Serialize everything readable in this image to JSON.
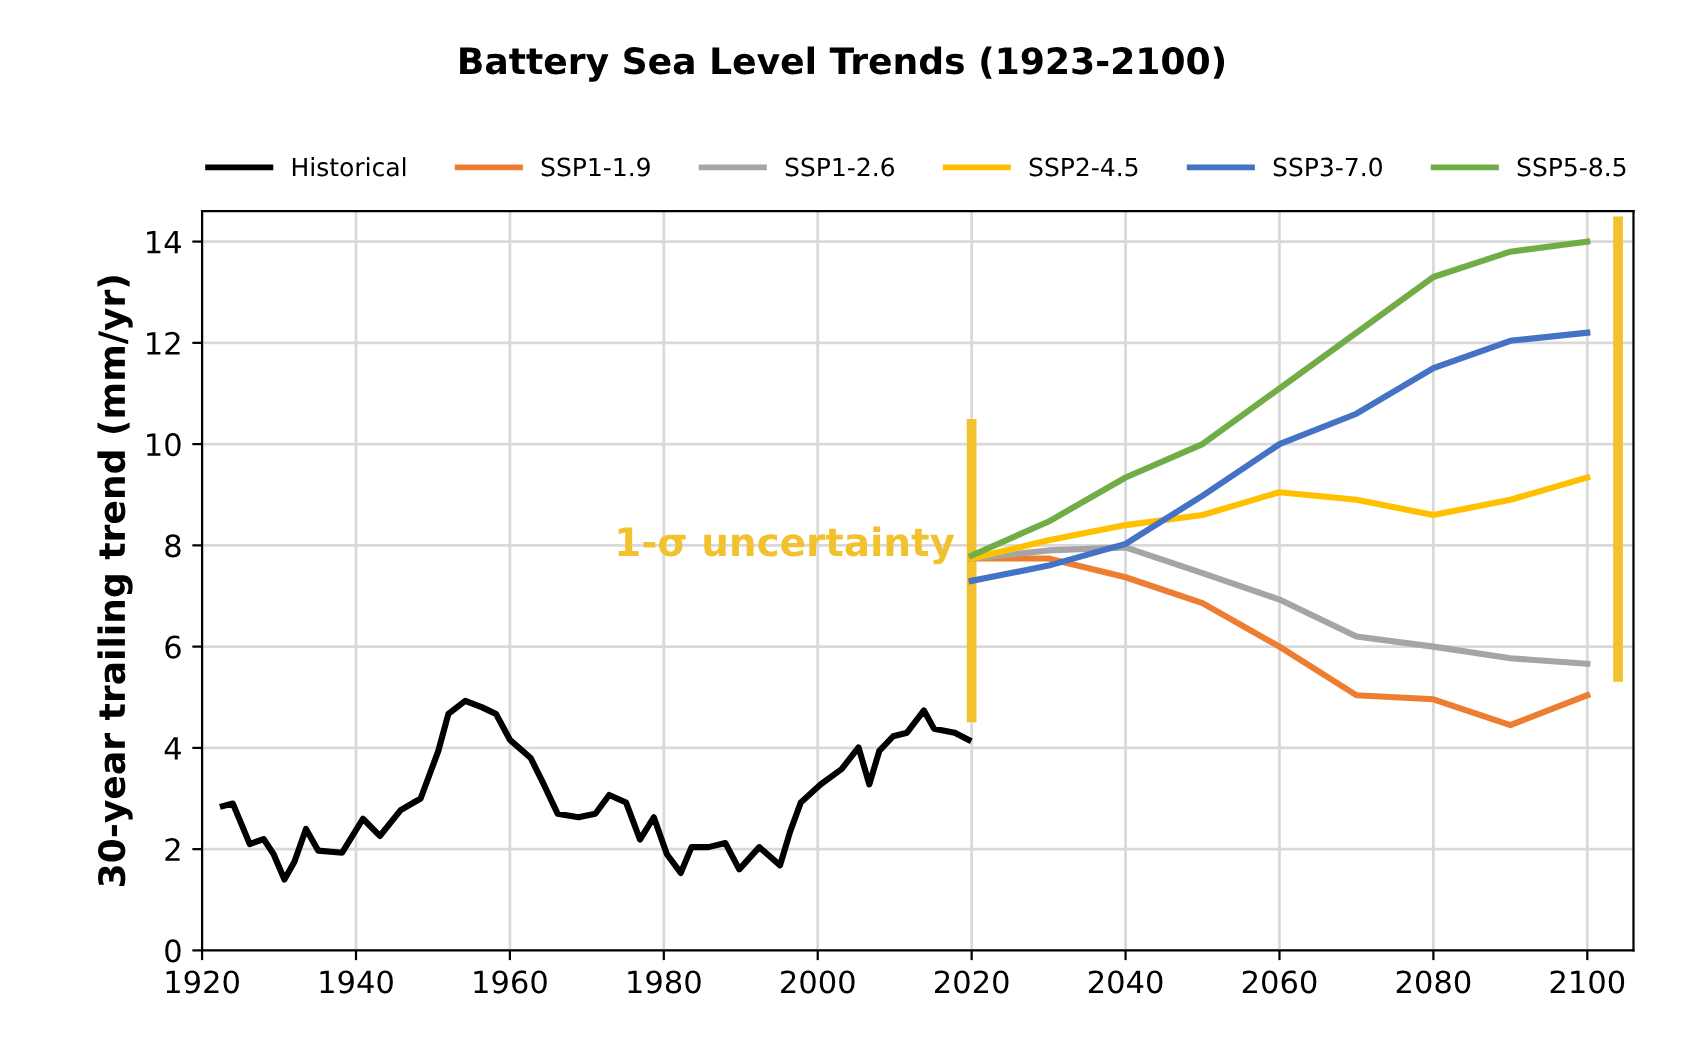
{
  "chart_data": {
    "type": "line",
    "title": "Battery Sea Level Trends (1923-2100)",
    "ylabel": "30-year trailing trend (mm/yr)",
    "xlim": [
      1920,
      2106
    ],
    "xticks": [
      1920,
      1940,
      1960,
      1980,
      2000,
      2020,
      2040,
      2060,
      2080,
      2100
    ],
    "ylim": [
      0,
      14.6
    ],
    "yticks": [
      0,
      2,
      4,
      6,
      8,
      10,
      12,
      14
    ],
    "grid": true,
    "legend": "top",
    "line_style": "solid",
    "marker": "none",
    "annotations": [
      {
        "text": "1-σ uncertainty",
        "x": 2020,
        "y": 8
      }
    ],
    "series": [
      {
        "name": "Historical",
        "color": "#000000",
        "x": [
          1922.7,
          1924,
          1926.2,
          1928,
          1929.3,
          1930.7,
          1932,
          1933.5,
          1935.1,
          1938.2,
          1940.9,
          1943.1,
          1945.8,
          1948.4,
          1950.7,
          1952,
          1954.2,
          1956.4,
          1958.2,
          1960,
          1962.7,
          1964.4,
          1966.2,
          1968.9,
          1971.1,
          1972.9,
          1975.1,
          1976.9,
          1978.7,
          1980.4,
          1982.2,
          1983.6,
          1985.8,
          1988,
          1989.8,
          1992.4,
          1995.1,
          1996.4,
          1997.8,
          2000.4,
          2003.1,
          2005.3,
          2006.7,
          2008,
          2009.8,
          2011.6,
          2013.8,
          2015.1,
          2017.8,
          2019.6
        ],
        "values": [
          2.85,
          2.9,
          2.1,
          2.2,
          1.9,
          1.4,
          1.75,
          2.4,
          1.97,
          1.93,
          2.6,
          2.26,
          2.77,
          3.0,
          3.94,
          4.67,
          4.93,
          4.8,
          4.67,
          4.16,
          3.8,
          3.28,
          2.7,
          2.63,
          2.7,
          3.07,
          2.92,
          2.19,
          2.63,
          1.9,
          1.53,
          2.04,
          2.04,
          2.12,
          1.6,
          2.04,
          1.68,
          2.34,
          2.92,
          3.28,
          3.58,
          4.01,
          3.28,
          3.94,
          4.23,
          4.3,
          4.74,
          4.38,
          4.3,
          4.16
        ]
      },
      {
        "name": "SSP1-1.9",
        "color": "#ed7d31",
        "x": [
          2020,
          2030,
          2040,
          2050,
          2060,
          2070,
          2080,
          2090,
          2100
        ],
        "values": [
          7.74,
          7.74,
          7.37,
          6.86,
          6.0,
          5.04,
          4.96,
          4.45,
          5.04
        ]
      },
      {
        "name": "SSP1-2.6",
        "color": "#a5a5a5",
        "x": [
          2020,
          2030,
          2040,
          2050,
          2060,
          2070,
          2080,
          2090,
          2100
        ],
        "values": [
          7.74,
          7.9,
          7.96,
          7.45,
          6.93,
          6.2,
          6.0,
          5.77,
          5.66
        ]
      },
      {
        "name": "SSP2-4.5",
        "color": "#ffc000",
        "x": [
          2020,
          2030,
          2040,
          2050,
          2060,
          2070,
          2080,
          2090,
          2100
        ],
        "values": [
          7.74,
          8.1,
          8.4,
          8.6,
          9.05,
          8.9,
          8.6,
          8.9,
          9.34
        ]
      },
      {
        "name": "SSP3-7.0",
        "color": "#4472c4",
        "x": [
          2020,
          2030,
          2040,
          2050,
          2060,
          2070,
          2080,
          2090,
          2100
        ],
        "values": [
          7.3,
          7.6,
          8.03,
          8.98,
          10.0,
          10.6,
          11.5,
          12.04,
          12.2
        ]
      },
      {
        "name": "SSP5-8.5",
        "color": "#70ad47",
        "x": [
          2020,
          2030,
          2040,
          2050,
          2060,
          2070,
          2080,
          2090,
          2100
        ],
        "values": [
          7.8,
          8.47,
          9.34,
          10.0,
          11.1,
          12.2,
          13.3,
          13.8,
          14.0
        ]
      },
      {
        "color": "#f2c12e",
        "x": [
          2020,
          2020
        ],
        "values": [
          4.6,
          10.4
        ]
      },
      {
        "color": "#f2c12e",
        "x": [
          2104,
          2104
        ],
        "values": [
          5.4,
          14.4
        ]
      }
    ]
  }
}
